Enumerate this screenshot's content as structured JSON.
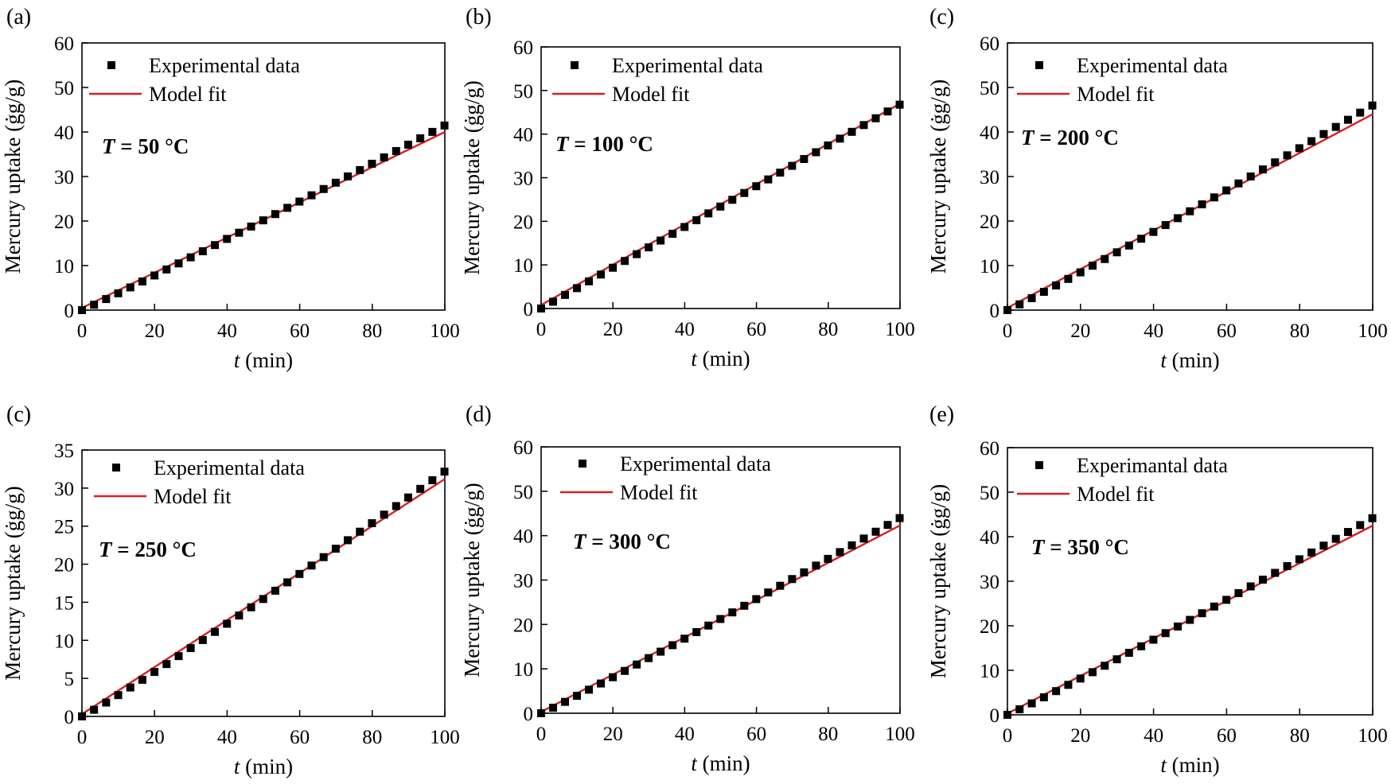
{
  "figure": {
    "legend_marker_color": "#000000",
    "fit_color": "#d62020"
  },
  "chart_data": [
    {
      "type": "scatter",
      "panel_label": "(a)",
      "temperature_label": "T = 50 °C",
      "temperature_prefix": "T",
      "temperature_value": " = 50 °C",
      "xlabel_italic": "t",
      "xlabel_rest": " (min)",
      "ylabel": "Mercury uptake (ġg/g)",
      "xlim": [
        0,
        100
      ],
      "ylim": [
        0,
        60
      ],
      "xticks": [
        0,
        20,
        40,
        60,
        80,
        100
      ],
      "yticks": [
        0,
        10,
        20,
        30,
        40,
        50,
        60
      ],
      "legend": [
        "Experimental data",
        "Model fit"
      ],
      "series": [
        {
          "name": "Experimental data",
          "kind": "points",
          "x_start": 0,
          "x_step": 3.33,
          "count": 31,
          "y_end": 41.5,
          "curve": 1.04
        },
        {
          "name": "Model fit",
          "kind": "line",
          "x": [
            0,
            100
          ],
          "y": [
            0.5,
            40.0
          ]
        }
      ]
    },
    {
      "type": "scatter",
      "panel_label": "(b)",
      "temperature_label": "T = 100 °C",
      "temperature_prefix": "T",
      "temperature_value": " = 100 °C",
      "xlabel_italic": "t",
      "xlabel_rest": " (min)",
      "ylabel": "Mercury uptake (ġg/g)",
      "xlim": [
        0,
        100
      ],
      "ylim": [
        0,
        60
      ],
      "xticks": [
        0,
        20,
        40,
        60,
        80,
        100
      ],
      "yticks": [
        0,
        10,
        20,
        30,
        40,
        50,
        60
      ],
      "legend": [
        "Experimental data",
        "Model fit"
      ],
      "series": [
        {
          "name": "Experimental data",
          "kind": "points",
          "x_start": 0,
          "x_step": 3.33,
          "count": 31,
          "y_end": 46.8,
          "curve": 1.0
        },
        {
          "name": "Model fit",
          "kind": "line",
          "x": [
            0,
            100
          ],
          "y": [
            0.8,
            47.0
          ]
        }
      ]
    },
    {
      "type": "scatter",
      "panel_label": "(c)",
      "temperature_label": "T = 200 °C",
      "temperature_prefix": "T",
      "temperature_value": " = 200 °C",
      "xlabel_italic": "t",
      "xlabel_rest": " (min)",
      "ylabel": "Mercury uptake (ġg/g)",
      "xlim": [
        0,
        100
      ],
      "ylim": [
        0,
        60
      ],
      "xticks": [
        0,
        20,
        40,
        60,
        80,
        100
      ],
      "yticks": [
        0,
        10,
        20,
        30,
        40,
        50,
        60
      ],
      "legend": [
        "Experimental data",
        "Model fit"
      ],
      "series": [
        {
          "name": "Experimental data",
          "kind": "points",
          "x_start": 0,
          "x_step": 3.33,
          "count": 31,
          "y_end": 46.0,
          "curve": 1.05
        },
        {
          "name": "Model fit",
          "kind": "line",
          "x": [
            0,
            100
          ],
          "y": [
            0.5,
            44.0
          ]
        }
      ]
    },
    {
      "type": "scatter",
      "panel_label": "(c)",
      "temperature_label": "T = 250 °C",
      "temperature_prefix": "T",
      "temperature_value": " = 250 °C",
      "xlabel_italic": "t",
      "xlabel_rest": " (min)",
      "ylabel": "Mercury uptake (ġg/g)",
      "xlim": [
        0,
        100
      ],
      "ylim": [
        0,
        35
      ],
      "xticks": [
        0,
        20,
        40,
        60,
        80,
        100
      ],
      "yticks": [
        0,
        5,
        10,
        15,
        20,
        25,
        30,
        35
      ],
      "legend": [
        "Experimental data",
        "Model fit"
      ],
      "series": [
        {
          "name": "Experimental data",
          "kind": "points",
          "x_start": 0,
          "x_step": 3.33,
          "count": 31,
          "y_end": 32.2,
          "curve": 1.06
        },
        {
          "name": "Model fit",
          "kind": "line",
          "x": [
            0,
            100
          ],
          "y": [
            0.3,
            31.2
          ]
        }
      ]
    },
    {
      "type": "scatter",
      "panel_label": "(d)",
      "temperature_label": "T = 300 °C",
      "temperature_prefix": "T",
      "temperature_value": " = 300 °C",
      "xlabel_italic": "t",
      "xlabel_rest": " (min)",
      "ylabel": "Mercury uptake (ġg/g)",
      "xlim": [
        0,
        100
      ],
      "ylim": [
        0,
        60
      ],
      "xticks": [
        0,
        20,
        40,
        60,
        80,
        100
      ],
      "yticks": [
        0,
        10,
        20,
        30,
        40,
        50,
        60
      ],
      "legend": [
        "Experimental data",
        "Model fit"
      ],
      "series": [
        {
          "name": "Experimental data",
          "kind": "points",
          "x_start": 0,
          "x_step": 3.33,
          "count": 31,
          "y_end": 44.0,
          "curve": 1.05
        },
        {
          "name": "Model fit",
          "kind": "line",
          "x": [
            0,
            100
          ],
          "y": [
            0.3,
            42.3
          ]
        }
      ]
    },
    {
      "type": "scatter",
      "panel_label": "(e)",
      "temperature_label": "T = 350 °C",
      "temperature_prefix": "T",
      "temperature_value": " = 350 °C",
      "xlabel_italic": "t",
      "xlabel_rest": " (min)",
      "ylabel": "Mercury uptake (ġg/g)",
      "xlim": [
        0,
        100
      ],
      "ylim": [
        0,
        60
      ],
      "xticks": [
        0,
        20,
        40,
        60,
        80,
        100
      ],
      "yticks": [
        0,
        10,
        20,
        30,
        40,
        50,
        60
      ],
      "legend": [
        "Experimantal data",
        "Model fit"
      ],
      "series": [
        {
          "name": "Experimantal data",
          "kind": "points",
          "x_start": 0,
          "x_step": 3.33,
          "count": 31,
          "y_end": 44.2,
          "curve": 1.05
        },
        {
          "name": "Model fit",
          "kind": "line",
          "x": [
            0,
            100
          ],
          "y": [
            0.3,
            42.5
          ]
        }
      ]
    }
  ]
}
